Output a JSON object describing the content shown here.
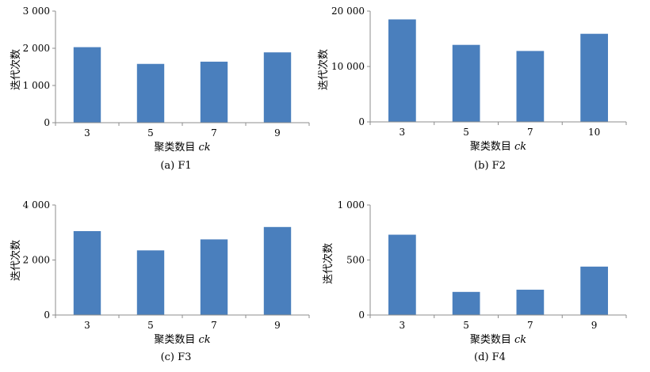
{
  "chart_data": [
    {
      "type": "bar",
      "caption": "(a) F1",
      "categories": [
        "3",
        "5",
        "7",
        "9"
      ],
      "values": [
        2030,
        1580,
        1640,
        1890
      ],
      "xlabel": "聚类数目",
      "xlabel_italic": "ck",
      "ylabel": "迭代次数",
      "ylim": [
        0,
        3000
      ],
      "yticks": [
        0,
        1000,
        2000,
        3000
      ],
      "ytick_labels": [
        "0",
        "1 000",
        "2 000",
        "3 000"
      ],
      "grid": false,
      "bar_color": "#4a7fbd"
    },
    {
      "type": "bar",
      "caption": "(b) F2",
      "categories": [
        "3",
        "5",
        "7",
        "10"
      ],
      "values": [
        18500,
        13900,
        12800,
        15900
      ],
      "xlabel": "聚类数目",
      "xlabel_italic": "ck",
      "ylabel": "迭代次数",
      "ylim": [
        0,
        20000
      ],
      "yticks": [
        0,
        10000,
        20000
      ],
      "ytick_labels": [
        "0",
        "10 000",
        "20 000"
      ],
      "grid": false,
      "bar_color": "#4a7fbd"
    },
    {
      "type": "bar",
      "caption": "(c) F3",
      "categories": [
        "3",
        "5",
        "7",
        "9"
      ],
      "values": [
        3050,
        2350,
        2750,
        3200
      ],
      "xlabel": "聚类数目",
      "xlabel_italic": "ck",
      "ylabel": "迭代次数",
      "ylim": [
        0,
        4000
      ],
      "yticks": [
        0,
        2000,
        4000
      ],
      "ytick_labels": [
        "0",
        "2 000",
        "4 000"
      ],
      "grid": false,
      "bar_color": "#4a7fbd"
    },
    {
      "type": "bar",
      "caption": "(d) F4",
      "categories": [
        "3",
        "5",
        "7",
        "9"
      ],
      "values": [
        730,
        210,
        230,
        440
      ],
      "xlabel": "聚类数目",
      "xlabel_italic": "ck",
      "ylabel": "迭代次数",
      "ylim": [
        0,
        1000
      ],
      "yticks": [
        0,
        500,
        1000
      ],
      "ytick_labels": [
        "0",
        "500",
        "1 000"
      ],
      "grid": false,
      "bar_color": "#4a7fbd"
    }
  ]
}
